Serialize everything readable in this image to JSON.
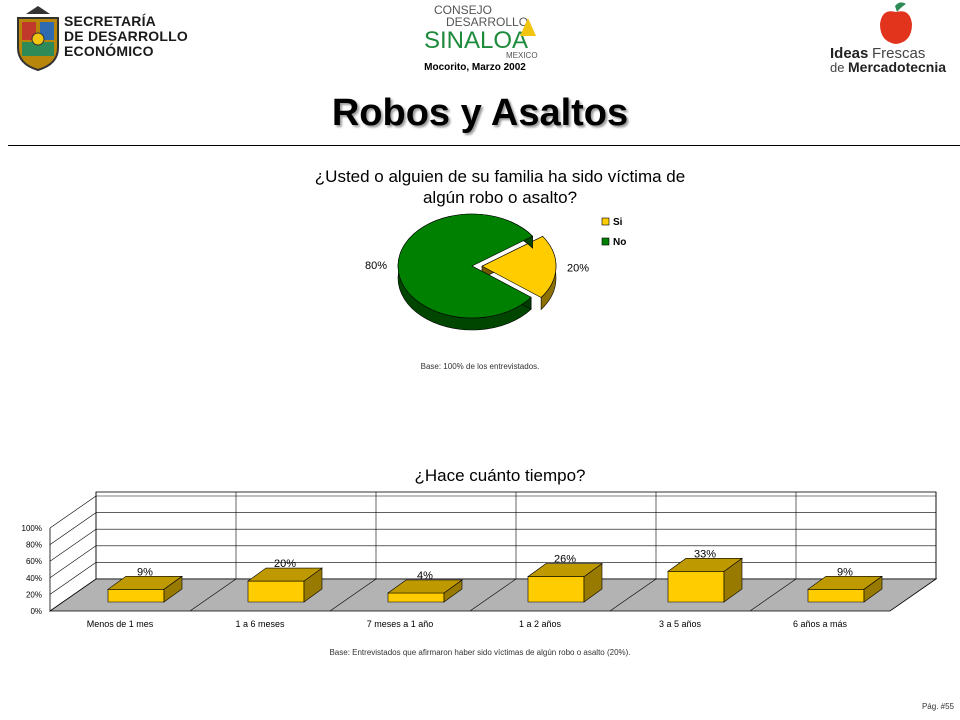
{
  "header": {
    "secretaria_lines": [
      "SECRETARÍA",
      "DE DESARROLLO",
      "ECONÓMICO"
    ],
    "center_logo_lines": [
      "CONSEJO",
      "DESARROLLO",
      "SINALOA",
      "MEXICO"
    ],
    "center_subtitle": "Mocorito, Marzo 2002",
    "right_logo_line1_a": "Ideas",
    "right_logo_line1_b": "Frescas",
    "right_logo_line2_a": "de",
    "right_logo_line2_b": "Mercadotecnia"
  },
  "page_title": "Robos y Asaltos",
  "chart1": {
    "question": "¿Usted o alguien de su familia ha sido víctima de algún robo o asalto?",
    "base_note": "Base:  100% de los entrevistados.",
    "colors": {
      "Si": "#ffcc00",
      "No": "#008000"
    }
  },
  "chart2": {
    "question": "¿Hace cuánto tiempo?",
    "base_note": "Base:  Entrevistados que afirmaron haber sido víctimas de algún robo o asalto (20%).",
    "bar_color": "#ffcc00"
  },
  "page_number": "Pág. #55",
  "chart_data": [
    {
      "type": "pie",
      "title": "¿Usted o alguien de su familia ha sido víctima de algún robo o asalto?",
      "categories": [
        "Si",
        "No"
      ],
      "values": [
        20,
        80
      ],
      "data_labels": [
        "20%",
        "80%"
      ],
      "legend": "right"
    },
    {
      "type": "bar",
      "title": "¿Hace cuánto tiempo?",
      "categories": [
        "Menos de 1 mes",
        "1 a 6 meses",
        "7 meses a 1 año",
        "1 a 2 años",
        "3 a 5 años",
        "6 años a más"
      ],
      "values": [
        9,
        20,
        4,
        26,
        33,
        9
      ],
      "data_labels": [
        "9%",
        "20%",
        "4%",
        "26%",
        "33%",
        "9%"
      ],
      "y_ticks": [
        "0%",
        "20%",
        "40%",
        "60%",
        "80%",
        "100%"
      ],
      "ylim": [
        0,
        100
      ],
      "grid": true
    }
  ]
}
